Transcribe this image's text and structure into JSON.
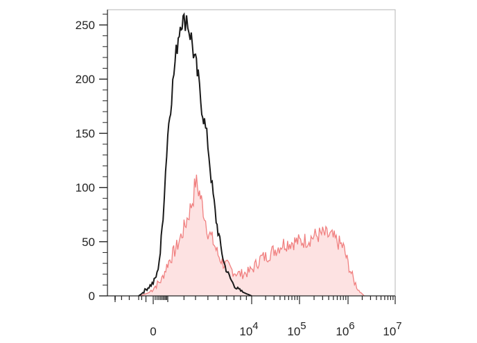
{
  "chart_data": {
    "type": "area",
    "title": "",
    "xlabel": "",
    "ylabel": "",
    "x_scale": "biexponential",
    "ylim": [
      0,
      260
    ],
    "y_ticks": [
      0,
      50,
      100,
      150,
      200,
      250
    ],
    "x_tick_labels": [
      {
        "value": 0,
        "base": "0",
        "exp": ""
      },
      {
        "value": 10000,
        "base": "10",
        "exp": "4"
      },
      {
        "value": 100000,
        "base": "10",
        "exp": "5"
      },
      {
        "value": 1000000,
        "base": "10",
        "exp": "6"
      },
      {
        "value": 10000000,
        "base": "10",
        "exp": "7"
      }
    ],
    "grid": false,
    "legend": "none",
    "series": [
      {
        "style": "line",
        "color": "#1a1a1a",
        "points": [
          [
            -3000,
            0
          ],
          [
            -2000,
            2
          ],
          [
            -1000,
            6
          ],
          [
            0,
            12
          ],
          [
            200,
            20
          ],
          [
            400,
            40
          ],
          [
            600,
            75
          ],
          [
            800,
            115
          ],
          [
            1000,
            150
          ],
          [
            1200,
            185
          ],
          [
            1400,
            215
          ],
          [
            1600,
            240
          ],
          [
            1800,
            256
          ],
          [
            2000,
            252
          ],
          [
            2200,
            258
          ],
          [
            2400,
            246
          ],
          [
            2600,
            238
          ],
          [
            2800,
            225
          ],
          [
            3000,
            215
          ],
          [
            3200,
            200
          ],
          [
            3400,
            180
          ],
          [
            3700,
            160
          ],
          [
            4000,
            140
          ],
          [
            4400,
            100
          ],
          [
            4800,
            70
          ],
          [
            5200,
            50
          ],
          [
            5700,
            30
          ],
          [
            6200,
            20
          ],
          [
            6800,
            12
          ],
          [
            7400,
            7
          ],
          [
            8200,
            4
          ],
          [
            9000,
            2
          ],
          [
            10000,
            0
          ]
        ]
      },
      {
        "style": "filled",
        "color": "#f08080",
        "fill": "#fde2e2",
        "points": [
          [
            -2500,
            0
          ],
          [
            -500,
            3
          ],
          [
            500,
            15
          ],
          [
            1000,
            30
          ],
          [
            1500,
            45
          ],
          [
            2000,
            62
          ],
          [
            2500,
            80
          ],
          [
            2800,
            92
          ],
          [
            3000,
            106
          ],
          [
            3300,
            95
          ],
          [
            3600,
            80
          ],
          [
            4000,
            60
          ],
          [
            4500,
            50
          ],
          [
            5000,
            38
          ],
          [
            5600,
            30
          ],
          [
            6200,
            27
          ],
          [
            7000,
            22
          ],
          [
            8000,
            20
          ],
          [
            9500,
            22
          ],
          [
            11000,
            26
          ],
          [
            13000,
            30
          ],
          [
            16000,
            35
          ],
          [
            20000,
            36
          ],
          [
            26000,
            40
          ],
          [
            35000,
            44
          ],
          [
            45000,
            48
          ],
          [
            60000,
            49
          ],
          [
            80000,
            50
          ],
          [
            100000,
            50
          ],
          [
            150000,
            52
          ],
          [
            200000,
            55
          ],
          [
            300000,
            57
          ],
          [
            450000,
            55
          ],
          [
            600000,
            50
          ],
          [
            800000,
            45
          ],
          [
            1000000,
            30
          ],
          [
            1300000,
            15
          ],
          [
            1700000,
            5
          ],
          [
            2200000,
            0
          ]
        ]
      }
    ]
  }
}
